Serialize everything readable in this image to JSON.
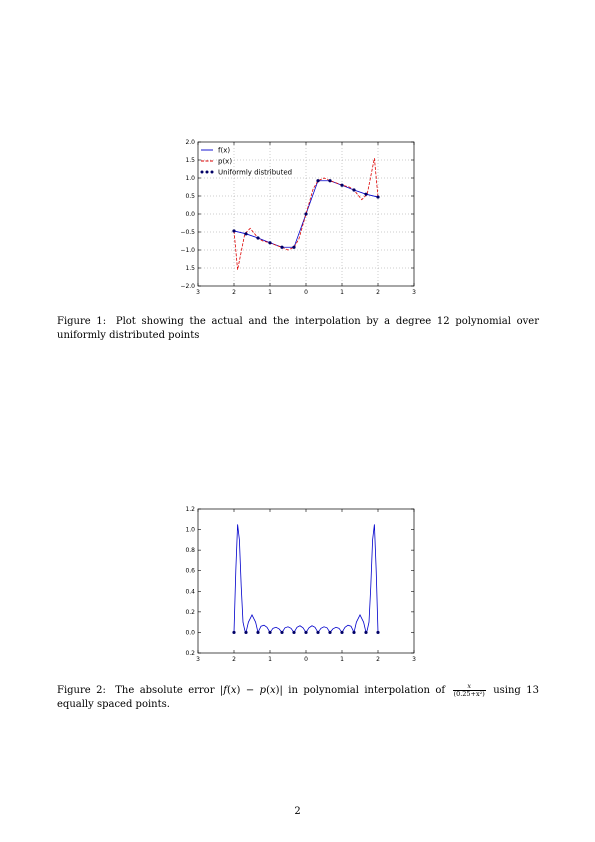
{
  "figures": [
    {
      "caption_label": "Figure 1:",
      "caption_text": "Plot showing the actual and the interpolation by a degree 12 polynomial over uniformly distributed points",
      "chart_data": {
        "type": "line",
        "xlim": [
          -3,
          3
        ],
        "ylim": [
          -2.0,
          2.0
        ],
        "x_tick_labels": [
          "3",
          "2",
          "1",
          "0",
          "1",
          "2",
          "3"
        ],
        "x_tick_values": [
          -3,
          -2,
          -1,
          0,
          1,
          2,
          3
        ],
        "y_tick_labels": [
          "2.0",
          "1.5",
          "1.0",
          "0.5",
          "0.0",
          "−0.5",
          "−1.0",
          "1.5",
          "−2.0"
        ],
        "y_tick_values": [
          2.0,
          1.5,
          1.0,
          0.5,
          0.0,
          -0.5,
          -1.0,
          -1.5,
          -2.0
        ],
        "grid": true,
        "legend_position": "top-left",
        "series": [
          {
            "name": "f(x)",
            "style": "line",
            "color": "#0000cc",
            "x": [
              -2.0,
              -1.6667,
              -1.3333,
              -1.0,
              -0.6667,
              -0.3333,
              0.0,
              0.3333,
              0.6667,
              1.0,
              1.3333,
              1.6667,
              2.0
            ],
            "y": [
              -0.4706,
              -0.5505,
              -0.6667,
              -0.8,
              -0.9231,
              -0.9231,
              0.0,
              0.9231,
              0.9231,
              0.8,
              0.6667,
              0.5505,
              0.4706
            ]
          },
          {
            "name": "p(x)",
            "style": "dashed",
            "color": "#dd0000",
            "x": [
              -2.0,
              -1.9,
              -1.8,
              -1.7,
              -1.55,
              -1.45,
              -1.3333,
              -1.2,
              -1.0,
              -0.8,
              -0.6667,
              -0.5,
              -0.3333,
              -0.2,
              0.0,
              0.2,
              0.3333,
              0.5,
              0.6667,
              0.8,
              1.0,
              1.2,
              1.3333,
              1.45,
              1.55,
              1.7,
              1.8,
              1.9,
              2.0
            ],
            "y": [
              -0.4706,
              -1.55,
              -1.05,
              -0.55,
              -0.4,
              -0.52,
              -0.6667,
              -0.75,
              -0.8,
              -0.88,
              -0.9231,
              -1.0,
              -0.9231,
              -0.7,
              0.0,
              0.7,
              0.9231,
              1.0,
              0.9231,
              0.88,
              0.8,
              0.75,
              0.6667,
              0.52,
              0.4,
              0.55,
              1.05,
              1.55,
              0.4706
            ]
          },
          {
            "name": "Uniformly distributed",
            "style": "markers",
            "color": "#000066",
            "x": [
              -2.0,
              -1.6667,
              -1.3333,
              -1.0,
              -0.6667,
              -0.3333,
              0.0,
              0.3333,
              0.6667,
              1.0,
              1.3333,
              1.6667,
              2.0
            ],
            "y": [
              -0.4706,
              -0.5505,
              -0.6667,
              -0.8,
              -0.9231,
              -0.9231,
              0.0,
              0.9231,
              0.9231,
              0.8,
              0.6667,
              0.5505,
              0.4706
            ]
          }
        ]
      }
    },
    {
      "caption_label": "Figure 2:",
      "caption_parts": {
        "pre": "The absolute error |",
        "fx": "f",
        "mid1": "(",
        "xv": "x",
        "mid2": ") − ",
        "px": "p",
        "mid3": "(",
        "xv2": "x",
        "mid4": ")| in polynomial interpolation of",
        "frac_num": "x",
        "frac_den": "(0.25+x²)",
        "post": "using 13 equally spaced points."
      },
      "chart_data": {
        "type": "line",
        "xlim": [
          -3,
          3
        ],
        "ylim": [
          -0.2,
          1.2
        ],
        "x_tick_labels": [
          "3",
          "2",
          "1",
          "0",
          "1",
          "2",
          "3"
        ],
        "x_tick_values": [
          -3,
          -2,
          -1,
          0,
          1,
          2,
          3
        ],
        "y_tick_labels": [
          "1.2",
          "1.0",
          "0.8",
          "0.6",
          "0.4",
          "0.2",
          "0.0",
          "0.2"
        ],
        "y_tick_values": [
          1.2,
          1.0,
          0.8,
          0.6,
          0.4,
          0.2,
          0.0,
          -0.2
        ],
        "grid": false,
        "series": [
          {
            "name": "",
            "style": "line",
            "color": "#0000cc",
            "x": [
              -2.0,
              -1.95,
              -1.9,
              -1.85,
              -1.8,
              -1.75,
              -1.7,
              -1.6667,
              -1.6,
              -1.5,
              -1.4,
              -1.3333,
              -1.25,
              -1.1667,
              -1.0833,
              -1.0,
              -0.9167,
              -0.8333,
              -0.75,
              -0.6667,
              -0.5833,
              -0.5,
              -0.4167,
              -0.3333,
              -0.25,
              -0.1667,
              -0.0833,
              0.0,
              0.0833,
              0.1667,
              0.25,
              0.3333,
              0.4167,
              0.5,
              0.5833,
              0.6667,
              0.75,
              0.8333,
              0.9167,
              1.0,
              1.0833,
              1.1667,
              1.25,
              1.3333,
              1.4,
              1.5,
              1.6,
              1.6667,
              1.7,
              1.75,
              1.8,
              1.85,
              1.9,
              1.95,
              2.0
            ],
            "y": [
              0.0,
              0.6,
              1.05,
              0.9,
              0.45,
              0.1,
              0.02,
              0.0,
              0.1,
              0.17,
              0.1,
              0.0,
              0.06,
              0.07,
              0.05,
              0.0,
              0.04,
              0.05,
              0.035,
              0.0,
              0.045,
              0.055,
              0.04,
              0.0,
              0.05,
              0.065,
              0.045,
              0.0,
              0.045,
              0.065,
              0.05,
              0.0,
              0.04,
              0.055,
              0.045,
              0.0,
              0.035,
              0.05,
              0.04,
              0.0,
              0.05,
              0.07,
              0.06,
              0.0,
              0.1,
              0.17,
              0.1,
              0.0,
              0.02,
              0.1,
              0.45,
              0.9,
              1.05,
              0.6,
              0.0
            ]
          },
          {
            "name": "",
            "style": "markers",
            "color": "#000066",
            "x": [
              -2.0,
              -1.6667,
              -1.3333,
              -1.0,
              -0.6667,
              -0.3333,
              0.0,
              0.3333,
              0.6667,
              1.0,
              1.3333,
              1.6667,
              2.0
            ],
            "y": [
              0,
              0,
              0,
              0,
              0,
              0,
              0,
              0,
              0,
              0,
              0,
              0,
              0
            ]
          }
        ]
      }
    }
  ],
  "page_number": "2"
}
